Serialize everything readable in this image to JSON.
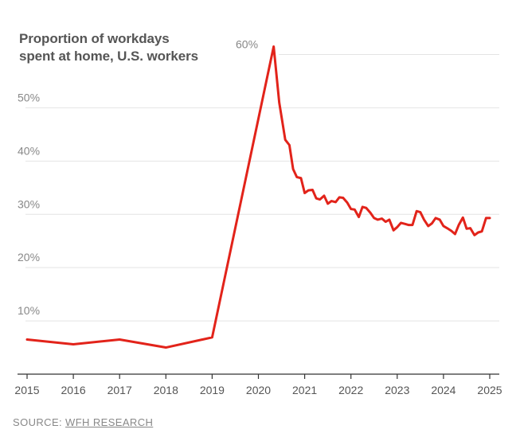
{
  "chart_data": {
    "type": "line",
    "title_lines": [
      "Proportion of workdays",
      "spent at home, U.S. workers"
    ],
    "xlabel": "",
    "ylabel": "",
    "xlim": [
      2015,
      2025
    ],
    "ylim": [
      0,
      60
    ],
    "x_ticks": [
      "2015",
      "2016",
      "2017",
      "2018",
      "2019",
      "2020",
      "2021",
      "2022",
      "2023",
      "2024",
      "2025"
    ],
    "y_ticks": [
      {
        "value": 10,
        "label": "10%"
      },
      {
        "value": 20,
        "label": "20%"
      },
      {
        "value": 30,
        "label": "30%"
      },
      {
        "value": 40,
        "label": "40%"
      },
      {
        "value": 50,
        "label": "50%"
      },
      {
        "value": 60,
        "label": "60%"
      }
    ],
    "grid": true,
    "legend": "none",
    "series_color": "#e2231a",
    "series": [
      {
        "x": [
          2015.0,
          2016.0,
          2017.0,
          2018.0,
          2019.0,
          2020.33,
          2020.45,
          2020.58,
          2020.67,
          2020.75,
          2020.83,
          2020.92,
          2021.0,
          2021.08,
          2021.17,
          2021.25,
          2021.33,
          2021.42,
          2021.5,
          2021.58,
          2021.67,
          2021.75,
          2021.83,
          2021.92,
          2022.0,
          2022.08,
          2022.17,
          2022.25,
          2022.33,
          2022.42,
          2022.5,
          2022.58,
          2022.67,
          2022.75,
          2022.83,
          2022.92,
          2023.0,
          2023.08,
          2023.17,
          2023.25,
          2023.33,
          2023.42,
          2023.5,
          2023.58,
          2023.67,
          2023.75,
          2023.83,
          2023.92,
          2024.0,
          2024.08,
          2024.17,
          2024.25,
          2024.33,
          2024.42,
          2024.5,
          2024.58,
          2024.67,
          2024.75,
          2024.83,
          2024.92,
          2025.0
        ],
        "values": [
          6.5,
          5.6,
          6.5,
          5.0,
          6.9,
          61.5,
          51.0,
          44.0,
          43.0,
          38.5,
          37.0,
          36.8,
          34.0,
          34.5,
          34.6,
          33.0,
          32.8,
          33.5,
          32.0,
          32.5,
          32.3,
          33.2,
          33.1,
          32.2,
          31.0,
          30.9,
          29.5,
          31.4,
          31.2,
          30.3,
          29.3,
          29.0,
          29.2,
          28.6,
          29.0,
          27.0,
          27.6,
          28.4,
          28.2,
          28.0,
          28.0,
          30.6,
          30.4,
          29.0,
          27.8,
          28.3,
          29.3,
          29.0,
          27.8,
          27.4,
          26.9,
          26.3,
          28.0,
          29.4,
          27.3,
          27.4,
          26.1,
          26.6,
          26.8,
          29.3,
          29.3
        ]
      }
    ]
  },
  "source": {
    "prefix": "SOURCE: ",
    "name": "WFH RESEARCH"
  }
}
